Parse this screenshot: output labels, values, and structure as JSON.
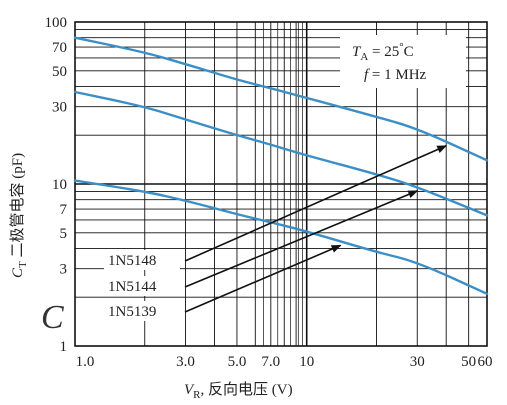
{
  "chart_data": {
    "type": "line",
    "x_scale": "log",
    "y_scale": "log",
    "xlim": [
      1,
      60
    ],
    "ylim": [
      1,
      100
    ],
    "grid": true,
    "x_ticks": [
      "1.0",
      "3.0",
      "5.0",
      "7.0",
      "10",
      "30",
      "50",
      "60"
    ],
    "y_ticks": [
      "100",
      "70",
      "50",
      "30",
      "10",
      "7",
      "5",
      "3",
      "1"
    ],
    "xlabel": {
      "symbol": "V",
      "subscript": "R",
      "rest": ", 反向电压 (V)"
    },
    "ylabel": {
      "symbol": "C",
      "subscript": "T",
      "rest": " 二极管电容 (pF)"
    },
    "conditions": {
      "ta": {
        "symbol": "T",
        "subscript": "A",
        "value": " = 25",
        "unit": "C"
      },
      "freq": {
        "symbol": "f",
        "value": " = 1 MHz"
      }
    },
    "panel_letter": "C",
    "series": [
      {
        "name": "1N5148",
        "x": [
          1,
          2,
          3,
          5,
          7,
          10,
          20,
          30,
          60
        ],
        "y": [
          80,
          65,
          55,
          44,
          39,
          34,
          26,
          22,
          14
        ]
      },
      {
        "name": "1N5144",
        "x": [
          1,
          2,
          3,
          5,
          7,
          10,
          20,
          30,
          60
        ],
        "y": [
          37,
          30,
          25,
          20,
          17.5,
          15,
          11.5,
          9.6,
          6.4
        ]
      },
      {
        "name": "1N5139",
        "x": [
          1,
          2,
          3,
          5,
          7,
          10,
          20,
          30,
          60
        ],
        "y": [
          10.5,
          9,
          7.9,
          6.5,
          5.8,
          5.1,
          3.8,
          3.3,
          2.1
        ]
      }
    ],
    "annotations": [
      {
        "label": "1N5148",
        "points_to_series": "1N5148",
        "target_x": 40
      },
      {
        "label": "1N5144",
        "points_to_series": "1N5144",
        "target_x": 30
      },
      {
        "label": "1N5139",
        "points_to_series": "1N5139",
        "target_x": 14
      }
    ],
    "colors": {
      "curve": "#3b8fc6",
      "grid": "#111111",
      "text": "#222222"
    }
  }
}
